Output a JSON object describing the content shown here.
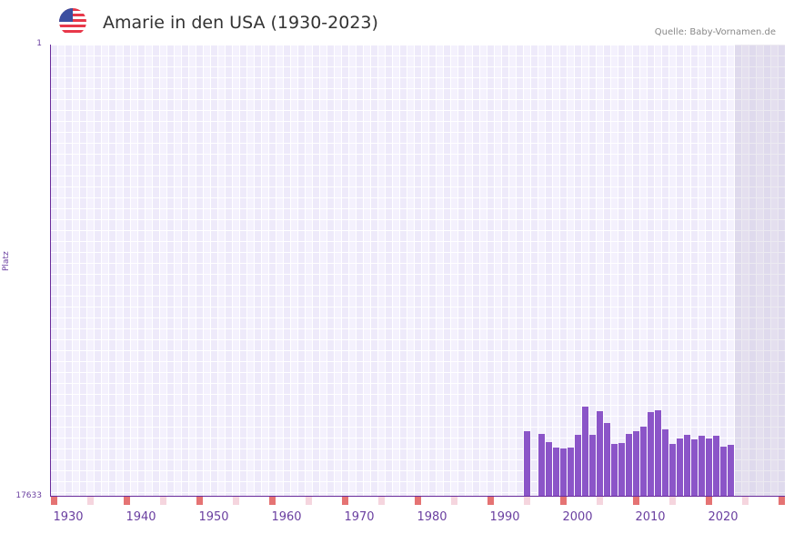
{
  "header": {
    "title": "Amarie in den USA (1930-2023)",
    "source": "Quelle: Baby-Vornamen.de",
    "flag": "us-flag-icon"
  },
  "axis": {
    "y_top": "1",
    "y_bottom": "17633",
    "y_name": "Platz",
    "x_ticks": [
      "1930",
      "1940",
      "1950",
      "1960",
      "1970",
      "1980",
      "1990",
      "2000",
      "2010",
      "2020"
    ]
  },
  "colors": {
    "bar": "#8b55c8",
    "axis": "#6a2c9b",
    "marker_strong": "#e57373",
    "marker_light": "#f5d5de"
  },
  "chart_data": {
    "type": "bar",
    "title": "Amarie in den USA (1930-2023)",
    "xlabel": "",
    "ylabel": "Platz",
    "ylim": [
      17633,
      1
    ],
    "y_inverted": true,
    "x": [
      1993,
      1995,
      1996,
      1997,
      1998,
      1999,
      2000,
      2001,
      2002,
      2003,
      2004,
      2005,
      2006,
      2007,
      2008,
      2009,
      2010,
      2011,
      2012,
      2013,
      2014,
      2015,
      2016,
      2017,
      2018,
      2019,
      2020,
      2021
    ],
    "values": [
      15108,
      15214,
      15534,
      15747,
      15783,
      15747,
      15250,
      14149,
      15250,
      14327,
      14789,
      15605,
      15570,
      15214,
      15108,
      14930,
      14362,
      14291,
      15037,
      15605,
      15392,
      15250,
      15428,
      15285,
      15392,
      15285,
      15712,
      15641
    ],
    "legend": [],
    "grid": true
  }
}
